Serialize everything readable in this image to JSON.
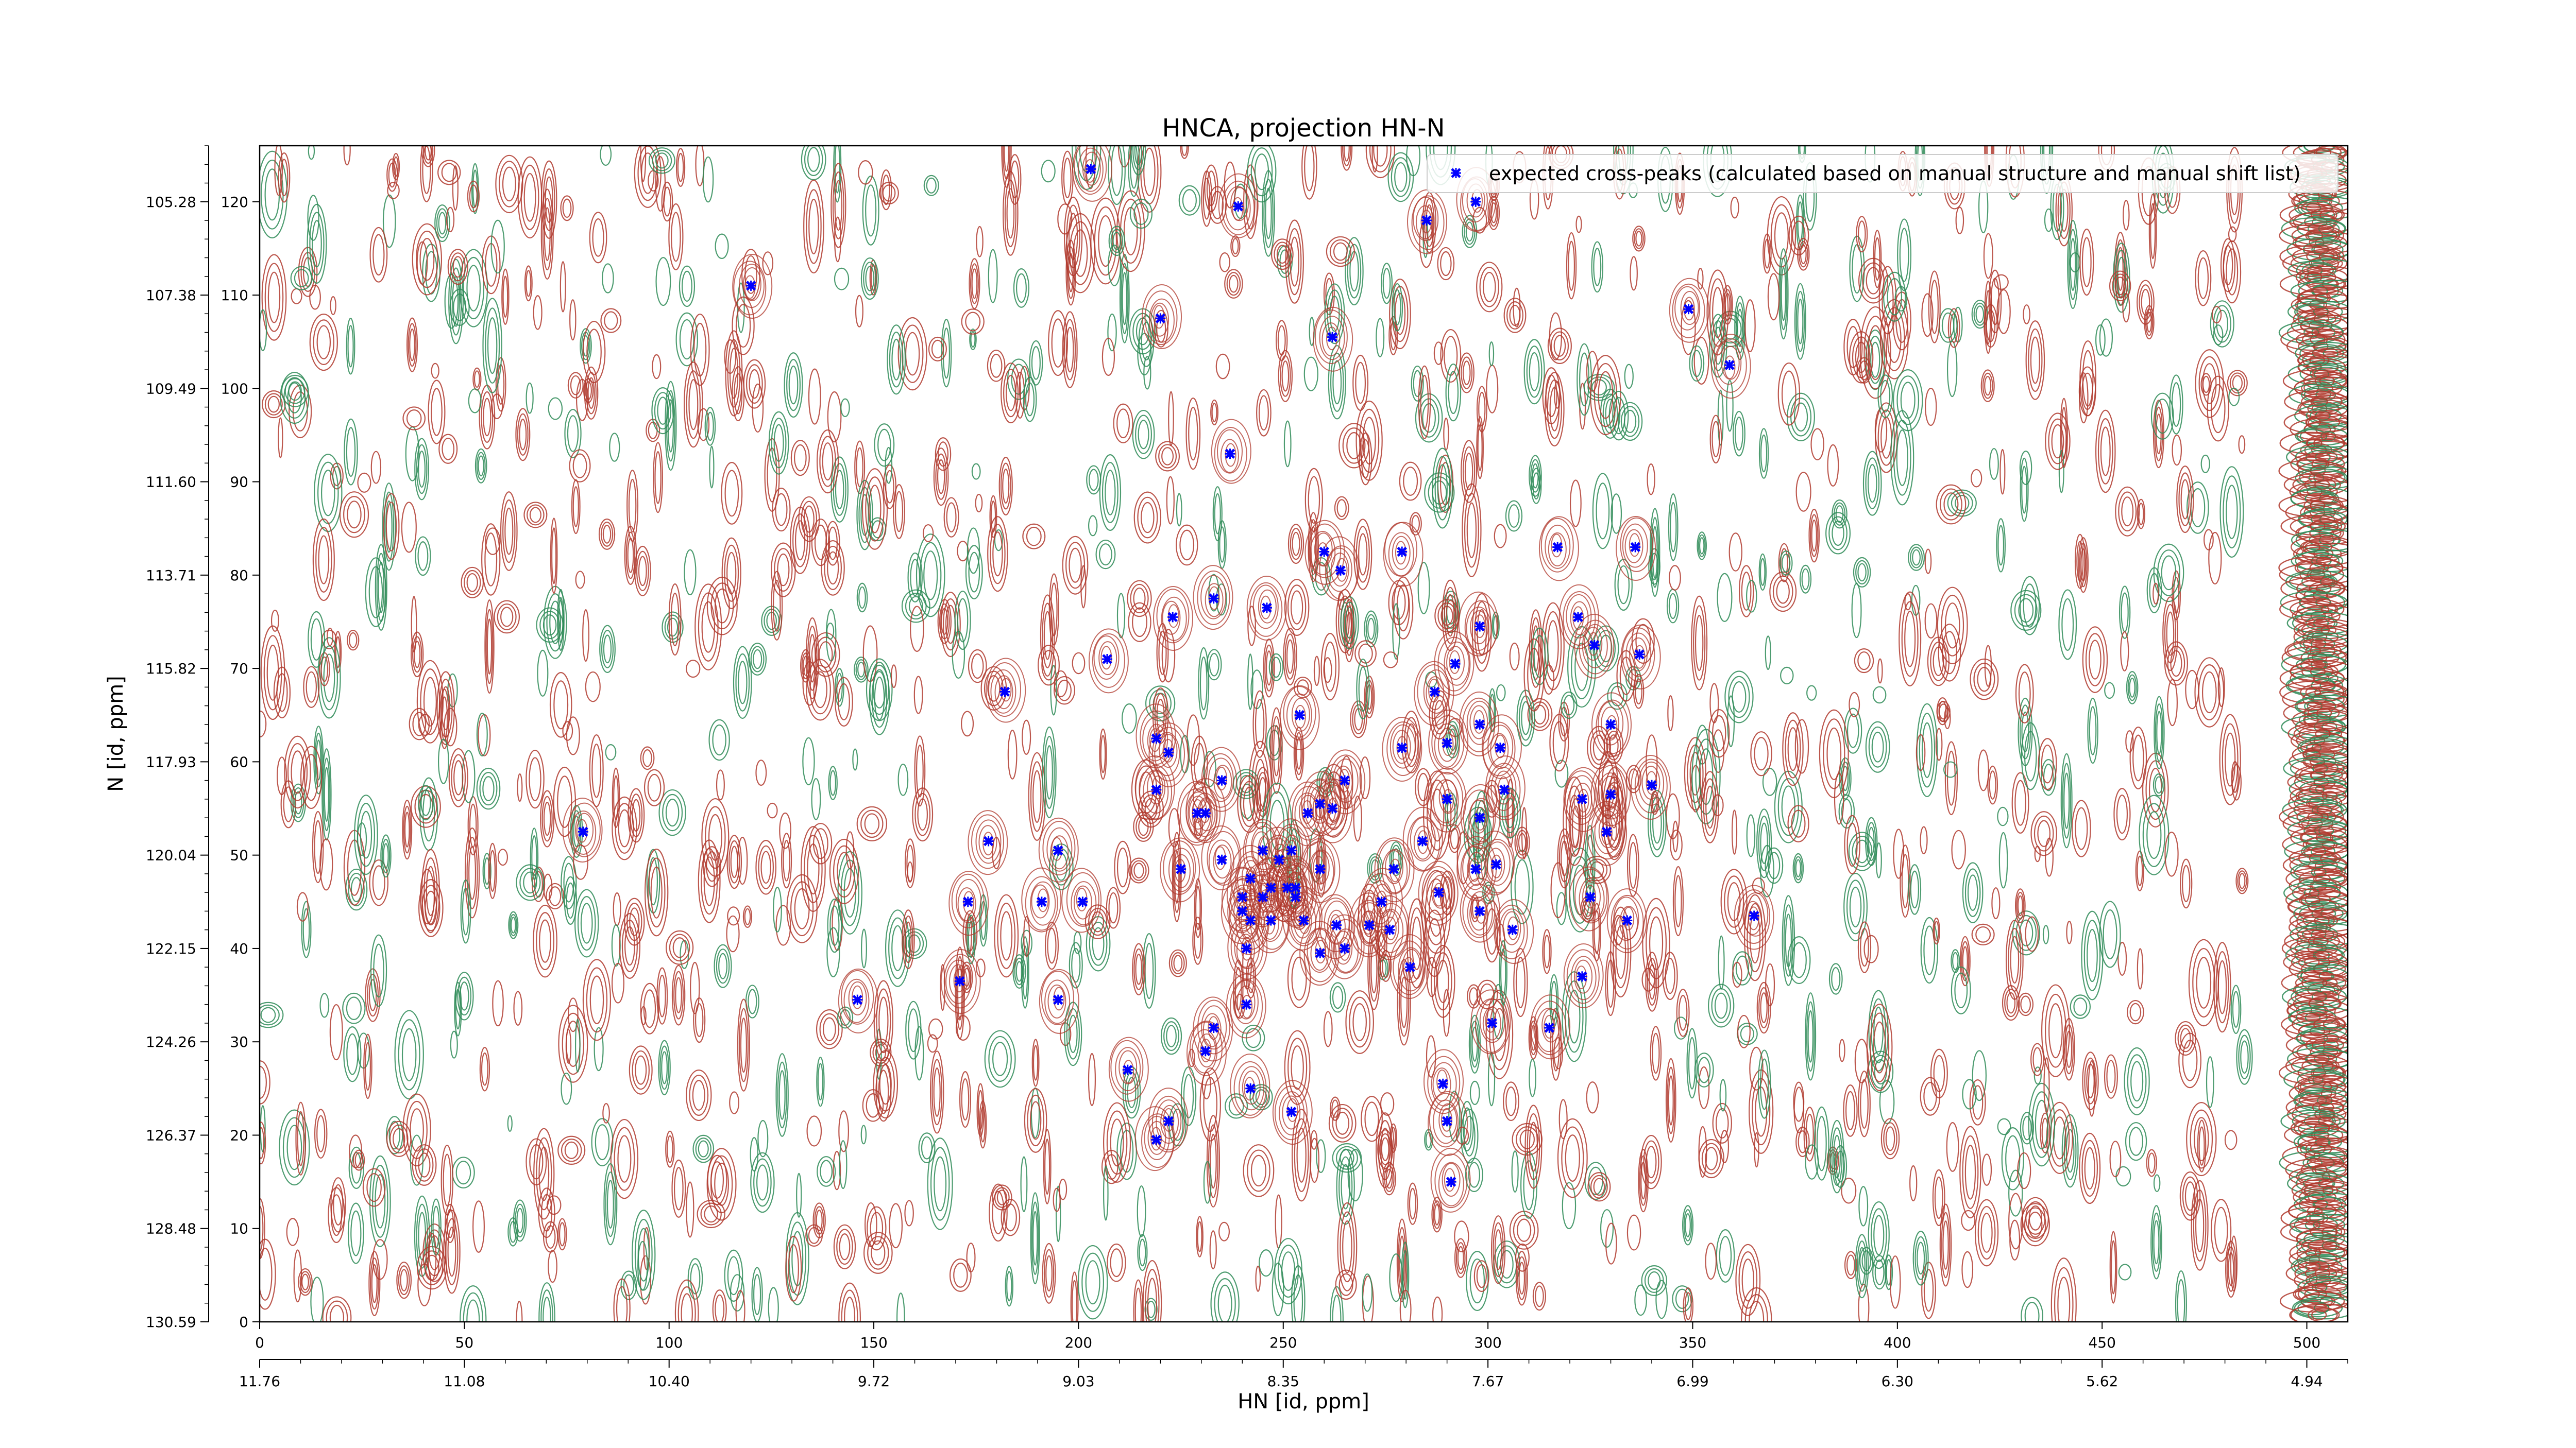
{
  "chart_data": {
    "type": "scatter",
    "title": "HNCA, projection HN-N",
    "xlabel": "HN [id, ppm]",
    "ylabel": "N [id, ppm]",
    "xlim": [
      0,
      510
    ],
    "ylim": [
      0,
      126
    ],
    "grid": false,
    "legend_position": "top-right",
    "x_ticks_index": [
      "0",
      "50",
      "100",
      "150",
      "200",
      "250",
      "300",
      "350",
      "400",
      "450",
      "500"
    ],
    "x_ticks_ppm": [
      "11.76",
      "11.08",
      "10.40",
      "9.72",
      "9.03",
      "8.35",
      "7.67",
      "6.99",
      "6.30",
      "5.62",
      "4.94"
    ],
    "y_ticks_index": [
      "0",
      "10",
      "20",
      "30",
      "40",
      "50",
      "60",
      "70",
      "80",
      "90",
      "100",
      "110",
      "120"
    ],
    "y_ticks_ppm": [
      "130.59",
      "128.48",
      "126.37",
      "124.26",
      "122.15",
      "120.04",
      "117.93",
      "115.82",
      "113.71",
      "111.60",
      "109.49",
      "107.38",
      "105.28"
    ],
    "background": "noisy 2D NMR contour spectrum (positive contours red, negative contours green)",
    "colors": {
      "positive_contour": "#b03a2e",
      "negative_contour": "#2e8b57",
      "marker": "#0000ff"
    },
    "series": [
      {
        "name": "expected cross-peaks (calculated based on manual structure and manual shift list)",
        "marker": "x",
        "color": "#0000ff",
        "points": [
          [
            203,
            123.5
          ],
          [
            239,
            119.5
          ],
          [
            285,
            118
          ],
          [
            297,
            120
          ],
          [
            120,
            111
          ],
          [
            220,
            107.5
          ],
          [
            349,
            108.5
          ],
          [
            262,
            105.5
          ],
          [
            359,
            102.5
          ],
          [
            237,
            93
          ],
          [
            317,
            83
          ],
          [
            336,
            83
          ],
          [
            260,
            82.5
          ],
          [
            279,
            82.5
          ],
          [
            264,
            80.5
          ],
          [
            233,
            77.5
          ],
          [
            223,
            75.5
          ],
          [
            246,
            76.5
          ],
          [
            298,
            74.5
          ],
          [
            322,
            75.5
          ],
          [
            326,
            72.5
          ],
          [
            337,
            71.5
          ],
          [
            207,
            71
          ],
          [
            292,
            70.5
          ],
          [
            182,
            67.5
          ],
          [
            287,
            67.5
          ],
          [
            254,
            65
          ],
          [
            298,
            64
          ],
          [
            330,
            64
          ],
          [
            219,
            62.5
          ],
          [
            222,
            61
          ],
          [
            279,
            61.5
          ],
          [
            290,
            62
          ],
          [
            303,
            61.5
          ],
          [
            235,
            58
          ],
          [
            265,
            58
          ],
          [
            304,
            57
          ],
          [
            340,
            57.5
          ],
          [
            219,
            57
          ],
          [
            290,
            56
          ],
          [
            259,
            55.5
          ],
          [
            262,
            55
          ],
          [
            323,
            56
          ],
          [
            330,
            56.5
          ],
          [
            229,
            54.5
          ],
          [
            231,
            54.5
          ],
          [
            256,
            54.5
          ],
          [
            298,
            54
          ],
          [
            79,
            52.5
          ],
          [
            329,
            52.5
          ],
          [
            178,
            51.5
          ],
          [
            195,
            50.5
          ],
          [
            284,
            51.5
          ],
          [
            245,
            50.5
          ],
          [
            252,
            50.5
          ],
          [
            235,
            49.5
          ],
          [
            249,
            49.5
          ],
          [
            225,
            48.5
          ],
          [
            302,
            49
          ],
          [
            259,
            48.5
          ],
          [
            277,
            48.5
          ],
          [
            297,
            48.5
          ],
          [
            242,
            47.5
          ],
          [
            247,
            46.5
          ],
          [
            251,
            46.5
          ],
          [
            253,
            46.5
          ],
          [
            240,
            45.5
          ],
          [
            245,
            45.5
          ],
          [
            288,
            46
          ],
          [
            173,
            45
          ],
          [
            191,
            45
          ],
          [
            201,
            45
          ],
          [
            274,
            45
          ],
          [
            253,
            45.5
          ],
          [
            325,
            45.5
          ],
          [
            240,
            44
          ],
          [
            298,
            44
          ],
          [
            365,
            43.5
          ],
          [
            242,
            43
          ],
          [
            255,
            43
          ],
          [
            247,
            43
          ],
          [
            263,
            42.5
          ],
          [
            271,
            42.5
          ],
          [
            276,
            42
          ],
          [
            306,
            42
          ],
          [
            334,
            43
          ],
          [
            241,
            40
          ],
          [
            259,
            39.5
          ],
          [
            265,
            40
          ],
          [
            281,
            38
          ],
          [
            146,
            34.5
          ],
          [
            171,
            36.5
          ],
          [
            195,
            34.5
          ],
          [
            323,
            37
          ],
          [
            241,
            34
          ],
          [
            233,
            31.5
          ],
          [
            301,
            32
          ],
          [
            315,
            31.5
          ],
          [
            231,
            29
          ],
          [
            212,
            27
          ],
          [
            242,
            25
          ],
          [
            289,
            25.5
          ],
          [
            252,
            22.5
          ],
          [
            222,
            21.5
          ],
          [
            290,
            21.5
          ],
          [
            219,
            19.5
          ],
          [
            291,
            15
          ]
        ]
      }
    ]
  }
}
